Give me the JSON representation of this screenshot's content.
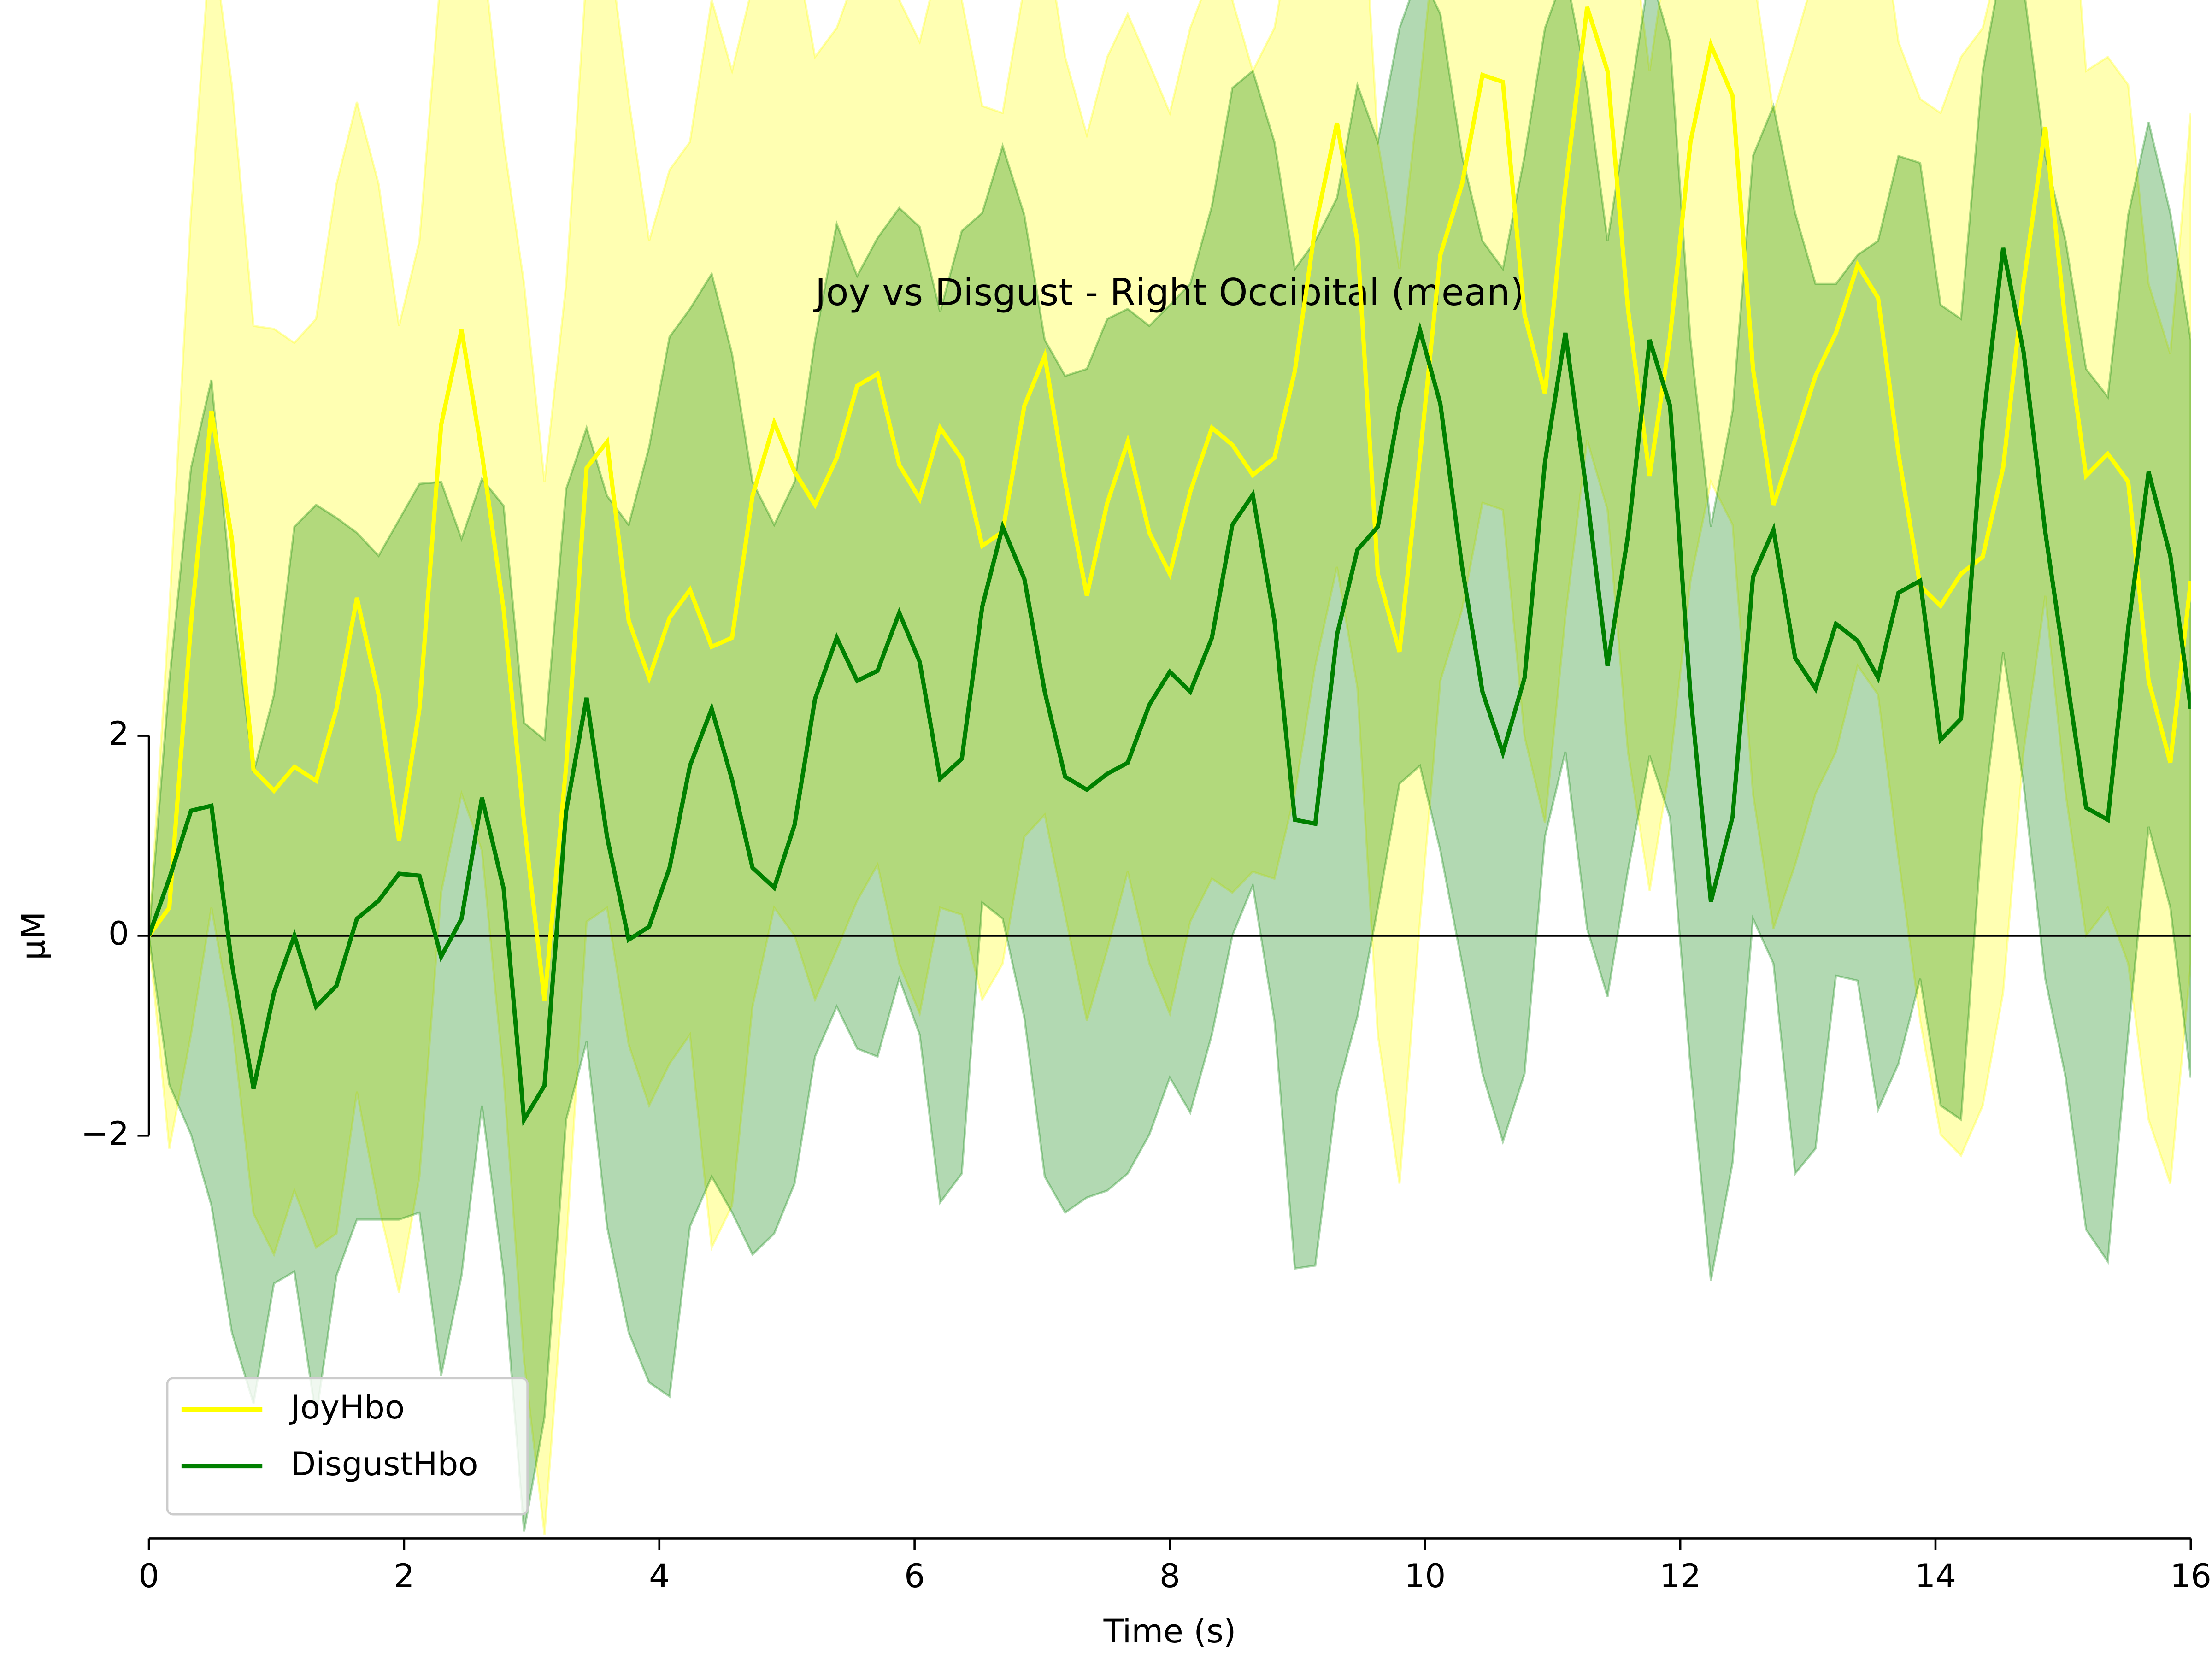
{
  "chart_data": {
    "type": "line",
    "title": "Joy vs Disgust - Right Occipital (mean)",
    "x_label": "Time (s)",
    "y_label": "µM",
    "x": [
      0,
      0.16,
      0.33,
      0.49,
      0.65,
      0.82,
      0.98,
      1.14,
      1.31,
      1.47,
      1.63,
      1.8,
      1.96,
      2.12,
      2.29,
      2.45,
      2.61,
      2.78,
      2.94,
      3.1,
      3.27,
      3.43,
      3.59,
      3.76,
      3.92,
      4.08,
      4.24,
      4.41,
      4.57,
      4.73,
      4.9,
      5.06,
      5.22,
      5.39,
      5.55,
      5.71,
      5.88,
      6.04,
      6.2,
      6.37,
      6.53,
      6.69,
      6.86,
      7.02,
      7.18,
      7.35,
      7.51,
      7.67,
      7.84,
      8.0,
      8.16,
      8.33,
      8.49,
      8.65,
      8.82,
      8.98,
      9.14,
      9.31,
      9.47,
      9.63,
      9.8,
      9.96,
      10.12,
      10.29,
      10.45,
      10.61,
      10.78,
      10.94,
      11.1,
      11.27,
      11.43,
      11.59,
      11.76,
      11.92,
      12.08,
      12.24,
      12.41,
      12.57,
      12.73,
      12.9,
      13.06,
      13.22,
      13.39,
      13.55,
      13.71,
      13.88,
      14.04,
      14.2,
      14.37,
      14.53,
      14.69,
      14.86,
      15.02,
      15.18,
      15.35,
      15.51,
      15.67,
      15.84,
      16.0
    ],
    "series": [
      {
        "name": "JoyHbo",
        "color": "#ffff00",
        "values": [
          0,
          0.28,
          3.12,
          5.25,
          3.97,
          1.66,
          1.45,
          1.69,
          1.55,
          2.27,
          3.38,
          2.41,
          0.95,
          2.27,
          5.11,
          6.06,
          4.82,
          3.26,
          1.13,
          -0.65,
          1.7,
          4.68,
          4.94,
          3.15,
          2.58,
          3.18,
          3.46,
          2.89,
          2.98,
          4.4,
          5.13,
          4.64,
          4.31,
          4.78,
          5.5,
          5.62,
          4.71,
          4.37,
          5.08,
          4.77,
          3.9,
          4.04,
          5.3,
          5.8,
          4.54,
          3.4,
          4.33,
          4.94,
          4.03,
          3.62,
          4.44,
          5.08,
          4.91,
          4.61,
          4.78,
          5.65,
          7.09,
          8.13,
          6.95,
          3.62,
          2.84,
          4.79,
          6.81,
          7.52,
          8.61,
          8.54,
          6.21,
          5.42,
          7.49,
          9.29,
          8.65,
          6.27,
          4.6,
          5.99,
          7.94,
          8.91,
          8.4,
          5.67,
          4.31,
          4.96,
          5.6,
          6.03,
          6.71,
          6.38,
          4.82,
          3.5,
          3.3,
          3.62,
          3.79,
          4.68,
          6.52,
          8.09,
          6.1,
          4.6,
          4.82,
          4.54,
          2.55,
          1.73,
          3.55
        ],
        "upper": [
          0,
          3.26,
          7.23,
          10.07,
          8.51,
          6.1,
          6.07,
          5.93,
          6.17,
          7.52,
          8.34,
          7.52,
          6.1,
          6.95,
          9.65,
          10.78,
          9.93,
          7.94,
          6.52,
          4.54,
          6.52,
          9.65,
          10.07,
          8.37,
          6.95,
          7.66,
          7.94,
          9.36,
          8.65,
          9.5,
          10.21,
          9.93,
          8.79,
          9.08,
          9.65,
          9.93,
          9.36,
          8.94,
          9.79,
          9.36,
          8.3,
          8.23,
          9.5,
          10.07,
          8.79,
          8.01,
          8.79,
          9.22,
          8.72,
          8.23,
          9.08,
          9.65,
          9.36,
          8.65,
          9.08,
          10.21,
          11.49,
          12.62,
          11.49,
          7.94,
          6.67,
          8.51,
          10.5,
          11.35,
          12.48,
          12.34,
          10.21,
          9.36,
          11.49,
          13.19,
          12.62,
          10.35,
          8.65,
          10.07,
          11.91,
          12.91,
          12.48,
          9.65,
          8.23,
          8.94,
          9.65,
          10.07,
          10.78,
          10.5,
          8.94,
          8.37,
          8.23,
          8.79,
          9.08,
          9.93,
          11.77,
          13.33,
          11.35,
          8.65,
          8.79,
          8.51,
          6.52,
          5.82,
          8.23
        ],
        "lower": [
          0,
          -2.13,
          -0.99,
          0.28,
          -0.85,
          -2.78,
          -3.19,
          -2.55,
          -3.12,
          -2.98,
          -1.56,
          -2.7,
          -3.57,
          -2.41,
          0.43,
          1.42,
          0.85,
          -1.42,
          -4.26,
          -5.99,
          -3.12,
          0.14,
          0.28,
          -1.09,
          -1.7,
          -1.28,
          -0.99,
          -3.12,
          -2.7,
          -0.71,
          0.28,
          0,
          -0.64,
          -0.14,
          0.35,
          0.71,
          -0.28,
          -0.78,
          0.28,
          0.21,
          -0.64,
          -0.28,
          0.99,
          1.21,
          0.21,
          -0.85,
          -0.14,
          0.64,
          -0.28,
          -0.78,
          0.14,
          0.57,
          0.43,
          0.64,
          0.57,
          1.42,
          2.7,
          3.69,
          2.48,
          -0.99,
          -2.48,
          0.14,
          2.55,
          3.26,
          4.33,
          4.26,
          1.99,
          1.13,
          3.19,
          4.96,
          4.26,
          1.84,
          0.45,
          1.7,
          3.55,
          4.54,
          4.11,
          1.42,
          0.07,
          0.71,
          1.42,
          1.84,
          2.7,
          2.41,
          0.78,
          -0.85,
          -1.99,
          -2.2,
          -1.7,
          -0.57,
          1.84,
          3.4,
          1.42,
          0,
          0.28,
          -0.28,
          -1.84,
          -2.48,
          -0.28
        ]
      },
      {
        "name": "DisgustHbo",
        "color": "#008000",
        "values": [
          0,
          0.57,
          1.25,
          1.3,
          -0.28,
          -1.53,
          -0.57,
          0,
          -0.71,
          -0.5,
          0.17,
          0.35,
          0.62,
          0.6,
          -0.21,
          0.17,
          1.38,
          0.47,
          -1.84,
          -1.5,
          1.25,
          2.38,
          0.99,
          -0.04,
          0.09,
          0.68,
          1.7,
          2.27,
          1.56,
          0.68,
          0.48,
          1.11,
          2.37,
          2.98,
          2.55,
          2.65,
          3.23,
          2.74,
          1.57,
          1.77,
          3.29,
          4.09,
          3.57,
          2.44,
          1.59,
          1.46,
          1.62,
          1.73,
          2.31,
          2.64,
          2.44,
          2.98,
          4.11,
          4.41,
          3.15,
          1.16,
          1.12,
          3.01,
          3.86,
          4.09,
          5.29,
          6.06,
          5.32,
          3.69,
          2.44,
          1.83,
          2.58,
          4.74,
          6.03,
          4.4,
          2.7,
          4.0,
          5.96,
          5.3,
          2.41,
          0.34,
          1.19,
          3.59,
          4.06,
          2.78,
          2.47,
          3.12,
          2.95,
          2.58,
          3.43,
          3.55,
          1.96,
          2.17,
          5.11,
          6.88,
          5.84,
          4.04,
          2.65,
          1.28,
          1.16,
          3.08,
          4.64,
          3.8,
          2.27
        ],
        "upper": [
          0,
          2.55,
          4.68,
          5.56,
          3.4,
          1.63,
          2.41,
          4.09,
          4.31,
          4.18,
          4.03,
          3.8,
          4.16,
          4.52,
          4.54,
          3.97,
          4.57,
          4.3,
          2.13,
          1.96,
          4.47,
          5.08,
          4.4,
          4.11,
          4.89,
          5.99,
          6.27,
          6.62,
          5.82,
          4.54,
          4.11,
          4.54,
          5.96,
          7.12,
          6.6,
          6.98,
          7.28,
          7.09,
          6.24,
          7.05,
          7.23,
          7.9,
          7.21,
          5.96,
          5.6,
          5.67,
          6.17,
          6.27,
          6.1,
          6.31,
          6.52,
          7.3,
          8.48,
          8.65,
          7.94,
          6.67,
          6.95,
          7.38,
          8.51,
          7.94,
          9.08,
          9.65,
          9.22,
          7.8,
          6.95,
          6.67,
          7.8,
          9.08,
          9.65,
          8.51,
          6.95,
          8.23,
          9.65,
          8.94,
          5.96,
          4.09,
          5.25,
          7.8,
          8.3,
          7.23,
          6.52,
          6.52,
          6.81,
          6.95,
          7.8,
          7.73,
          6.31,
          6.17,
          8.65,
          9.79,
          9.5,
          7.8,
          6.95,
          5.67,
          5.39,
          7.21,
          8.14,
          7.23,
          5.96
        ],
        "lower": [
          0,
          -1.49,
          -1.99,
          -2.7,
          -3.97,
          -4.68,
          -3.48,
          -3.36,
          -4.82,
          -3.4,
          -2.84,
          -2.84,
          -2.84,
          -2.77,
          -4.4,
          -3.4,
          -1.7,
          -3.4,
          -5.96,
          -4.82,
          -1.84,
          -1.06,
          -2.91,
          -3.97,
          -4.47,
          -4.61,
          -2.91,
          -2.41,
          -2.77,
          -3.19,
          -2.98,
          -2.48,
          -1.21,
          -0.71,
          -1.13,
          -1.21,
          -0.43,
          -0.99,
          -2.67,
          -2.38,
          0.33,
          0.17,
          -0.82,
          -2.41,
          -2.77,
          -2.62,
          -2.55,
          -2.38,
          -1.99,
          -1.42,
          -1.77,
          -0.99,
          0,
          0.5,
          -0.85,
          -3.33,
          -3.3,
          -1.57,
          -0.81,
          0.28,
          1.52,
          1.7,
          0.85,
          -0.28,
          -1.38,
          -2.06,
          -1.38,
          0.99,
          1.84,
          0.07,
          -0.61,
          0.65,
          1.8,
          1.18,
          -1.32,
          -3.45,
          -2.27,
          0.17,
          -0.28,
          -2.38,
          -2.13,
          -0.4,
          -0.45,
          -1.74,
          -1.28,
          -0.43,
          -1.7,
          -1.84,
          1.13,
          2.84,
          1.52,
          -0.43,
          -1.42,
          -2.94,
          -3.26,
          -0.99,
          1.09,
          0.28,
          -1.42
        ]
      }
    ],
    "xlim": [
      0,
      16
    ],
    "xticks": [
      0,
      2,
      4,
      6,
      8,
      10,
      12,
      14,
      16
    ],
    "ylim": [
      -6.03,
      9.36
    ],
    "yticks": [
      {
        "value": -2,
        "label": "−2"
      },
      0,
      2
    ],
    "hline": 0,
    "legend": "lower left"
  }
}
